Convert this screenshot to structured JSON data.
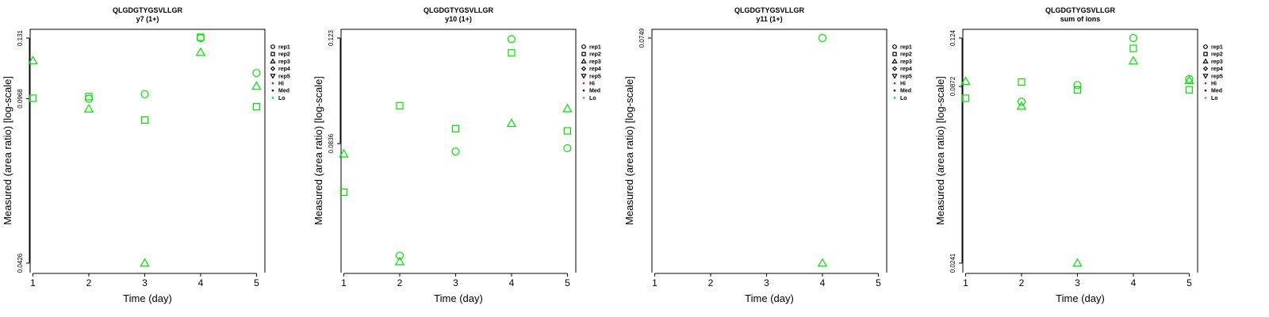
{
  "colors": {
    "Hi": "#ff0000",
    "Med": "#0000ff",
    "Lo": "#00e000"
  },
  "legend": [
    "rep1",
    "rep2",
    "rep3",
    "rep4",
    "rep5",
    "Hi",
    "Med",
    "Lo"
  ],
  "chart_data": [
    {
      "type": "scatter",
      "title": "QLGDGTYGSVLLGR",
      "subtitle": "y7 (1+)",
      "xlabel": "Time (day)",
      "ylabel": "Measured (area ratio) [log-scale]",
      "x_ticks": [
        1,
        2,
        3,
        4,
        5
      ],
      "xlim": [
        0.95,
        5.15
      ],
      "y_scale": "log",
      "y_ticks": [
        "0.0426",
        "0.0968",
        "0.131"
      ],
      "ylim": [
        0.0426,
        0.131
      ],
      "series": [
        {
          "name": "rep1",
          "level": "Lo",
          "points": [
            [
              2,
              0.0968
            ],
            [
              3,
              0.099
            ],
            [
              4,
              0.131
            ],
            [
              5,
              0.11
            ]
          ]
        },
        {
          "name": "rep2",
          "level": "Lo",
          "points": [
            [
              1,
              0.097
            ],
            [
              2,
              0.0978
            ],
            [
              3,
              0.087
            ],
            [
              4,
              0.1315
            ],
            [
              5,
              0.093
            ]
          ]
        },
        {
          "name": "rep3",
          "level": "Lo",
          "points": [
            [
              1,
              0.117
            ],
            [
              2,
              0.092
            ],
            [
              3,
              0.0426
            ],
            [
              4,
              0.122
            ],
            [
              5,
              0.103
            ]
          ]
        }
      ]
    },
    {
      "type": "scatter",
      "title": "QLGDGTYGSVLLGR",
      "subtitle": "y10 (1+)",
      "xlabel": "Time (day)",
      "ylabel": "Measured (area ratio) [log-scale]",
      "x_ticks": [
        1,
        2,
        3,
        4,
        5
      ],
      "xlim": [
        0.95,
        5.15
      ],
      "y_scale": "log",
      "y_ticks": [
        "0.0836",
        "0.123"
      ],
      "ylim": [
        0.054,
        0.123
      ],
      "series": [
        {
          "name": "rep1",
          "level": "Lo",
          "points": [
            [
              2,
              0.0555
            ],
            [
              3,
              0.0812
            ],
            [
              4,
              0.1225
            ],
            [
              5,
              0.0822
            ]
          ]
        },
        {
          "name": "rep2",
          "level": "Lo",
          "points": [
            [
              1,
              0.07
            ],
            [
              2,
              0.096
            ],
            [
              3,
              0.0883
            ],
            [
              4,
              0.1165
            ],
            [
              5,
              0.0876
            ]
          ]
        },
        {
          "name": "rep3",
          "level": "Lo",
          "points": [
            [
              1,
              0.0805
            ],
            [
              2,
              0.0543
            ],
            [
              4,
              0.09
            ],
            [
              5,
              0.095
            ]
          ]
        }
      ]
    },
    {
      "type": "scatter",
      "title": "QLGDGTYGSVLLGR",
      "subtitle": "y11 (1+)",
      "xlabel": "Time (day)",
      "ylabel": "Measured (area ratio) [log-scale]",
      "x_ticks": [
        1,
        2,
        3,
        4,
        5
      ],
      "xlim": [
        0.95,
        5.15
      ],
      "y_scale": "log",
      "y_ticks": [
        "0.0749"
      ],
      "ylim": [
        0.02,
        0.0749
      ],
      "series": [
        {
          "name": "rep1",
          "level": "Lo",
          "points": [
            [
              4,
              0.0749
            ]
          ]
        },
        {
          "name": "rep3",
          "level": "Lo",
          "points": [
            [
              4,
              0.02
            ]
          ]
        }
      ]
    },
    {
      "type": "scatter",
      "title": "QLGDGTYGSVLLGR",
      "subtitle": "sum of ions",
      "xlabel": "Time (day)",
      "ylabel": "Measured (area ratio) [log-scale]",
      "x_ticks": [
        1,
        2,
        3,
        4,
        5
      ],
      "xlim": [
        0.95,
        5.15
      ],
      "y_scale": "log",
      "y_ticks": [
        "0.0241",
        "0.0872",
        "0.124"
      ],
      "ylim": [
        0.0241,
        0.124
      ],
      "series": [
        {
          "name": "rep1",
          "level": "Lo",
          "points": [
            [
              2,
              0.078
            ],
            [
              3,
              0.088
            ],
            [
              4,
              0.124
            ],
            [
              5,
              0.092
            ]
          ]
        },
        {
          "name": "rep2",
          "level": "Lo",
          "points": [
            [
              1,
              0.08
            ],
            [
              2,
              0.09
            ],
            [
              3,
              0.085
            ],
            [
              4,
              0.115
            ],
            [
              5,
              0.085
            ]
          ]
        },
        {
          "name": "rep3",
          "level": "Lo",
          "points": [
            [
              1,
              0.0905
            ],
            [
              2,
              0.0755
            ],
            [
              3,
              0.0241
            ],
            [
              4,
              0.105
            ],
            [
              5,
              0.091
            ]
          ]
        }
      ]
    }
  ]
}
